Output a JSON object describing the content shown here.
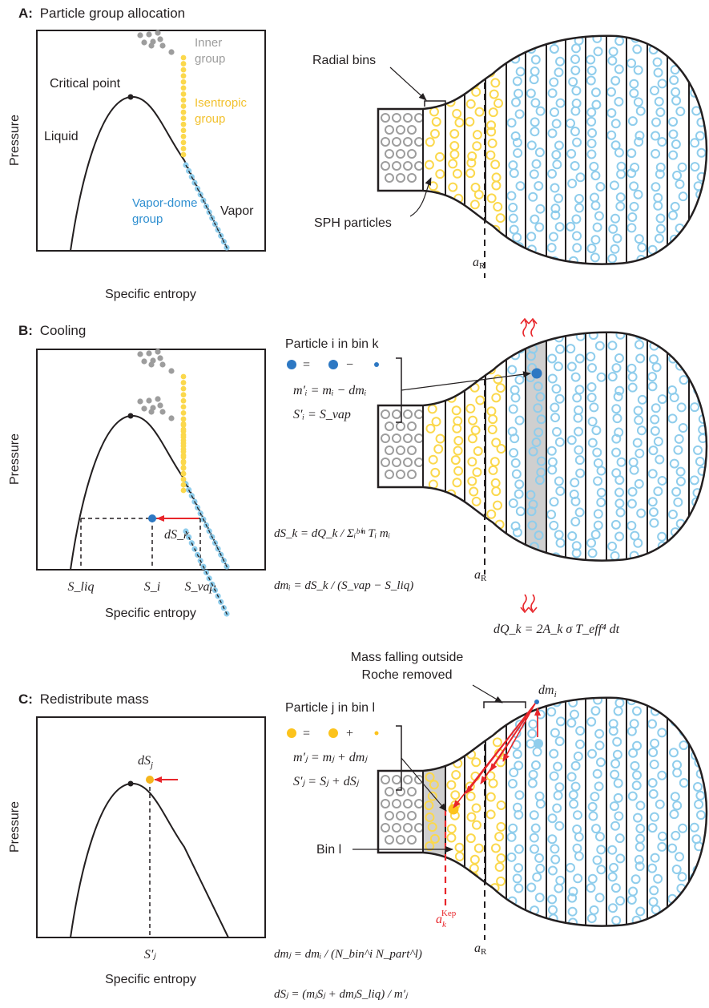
{
  "colors": {
    "inner": "#9d9d9d",
    "isentropic": "#fbd84c",
    "vapor_dome": "#8fcdec",
    "vapor_dome_label": "#2f8fd0",
    "particle_dark": "#2d78c3",
    "red": "#e8262b",
    "line": "#231f20"
  },
  "panel_a": {
    "heading_letter": "A:",
    "heading_text": "Particle group allocation",
    "y_axis": "Pressure",
    "x_axis": "Specific entropy",
    "label_critical_point": "Critical point",
    "label_liquid": "Liquid",
    "label_vapor": "Vapor",
    "label_inner": [
      "Inner",
      "group"
    ],
    "label_isentropic": [
      "Isentropic",
      "group"
    ],
    "label_vapordome": [
      "Vapor-dome",
      "group"
    ],
    "label_radial_bins": "Radial bins",
    "label_sph": "SPH particles",
    "label_aR": "a",
    "label_aR_sub": "R"
  },
  "panel_b": {
    "heading_letter": "B:",
    "heading_text": "Cooling",
    "y_axis": "Pressure",
    "x_axis": "Specific entropy",
    "particle_title": "Particle i in bin k",
    "eq_m": "m′ᵢ = mᵢ − dmᵢ",
    "eq_s": "S′ᵢ = S_vap",
    "eq_dSk": "dS_k = dQ_k / Σᵢᵇⁱⁿ Tᵢ mᵢ",
    "eq_dmi": "dmᵢ = dS_k / (S_vap − S_liq)",
    "eq_dQk": "dQ_k = 2A_k σ T_eff⁴ dt",
    "label_dSk": "dS_k",
    "tick_sliq": "S_liq",
    "tick_si": "S_i",
    "tick_svap": "S_vap",
    "label_aR": "a",
    "label_aR_sub": "R"
  },
  "panel_c": {
    "heading_letter": "C:",
    "heading_text": "Redistribute mass",
    "y_axis": "Pressure",
    "x_axis": "Specific entropy",
    "particle_title": "Particle j in bin l",
    "eq_m": "m′ⱼ = mⱼ + dmⱼ",
    "eq_s": "S′ⱼ = Sⱼ + dSⱼ",
    "eq_dmj": "dmⱼ = dmᵢ / (N_bin^i N_part^l)",
    "eq_dSj": "dSⱼ = (mⱼSⱼ + dmⱼS_liq) / m′ⱼ",
    "label_mass_falling": [
      "Mass falling outside",
      "Roche removed"
    ],
    "label_bin_l": "Bin l",
    "label_dmi": "dm",
    "label_dSj": "dS",
    "tick_sj": "S′ⱼ",
    "label_akep": "a",
    "label_akep_sub": "k",
    "label_akep_sup": "Kep",
    "label_aR": "a",
    "label_aR_sub": "R"
  }
}
